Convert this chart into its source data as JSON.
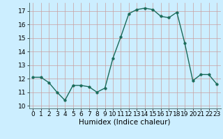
{
  "x": [
    0,
    1,
    2,
    3,
    4,
    5,
    6,
    7,
    8,
    9,
    10,
    11,
    12,
    13,
    14,
    15,
    16,
    17,
    18,
    19,
    20,
    21,
    22,
    23
  ],
  "y": [
    12.1,
    12.1,
    11.7,
    11.0,
    10.4,
    11.5,
    11.5,
    11.4,
    11.0,
    11.3,
    13.5,
    15.1,
    16.8,
    17.1,
    17.2,
    17.1,
    16.6,
    16.5,
    16.9,
    14.6,
    11.85,
    12.3,
    12.3,
    11.6
  ],
  "line_color": "#1a6b5a",
  "marker": "o",
  "marker_size": 2.5,
  "bg_color": "#cceeff",
  "grid_color_major": "#c8a0a0",
  "grid_color_minor": "#c8a0a0",
  "xlabel": "Humidex (Indice chaleur)",
  "ylim": [
    9.8,
    17.6
  ],
  "xlim": [
    -0.5,
    23.5
  ],
  "yticks": [
    10,
    11,
    12,
    13,
    14,
    15,
    16,
    17
  ],
  "xticks": [
    0,
    1,
    2,
    3,
    4,
    5,
    6,
    7,
    8,
    9,
    10,
    11,
    12,
    13,
    14,
    15,
    16,
    17,
    18,
    19,
    20,
    21,
    22,
    23
  ],
  "xlabel_fontsize": 7.5,
  "tick_fontsize": 6.5,
  "line_width": 1.0
}
